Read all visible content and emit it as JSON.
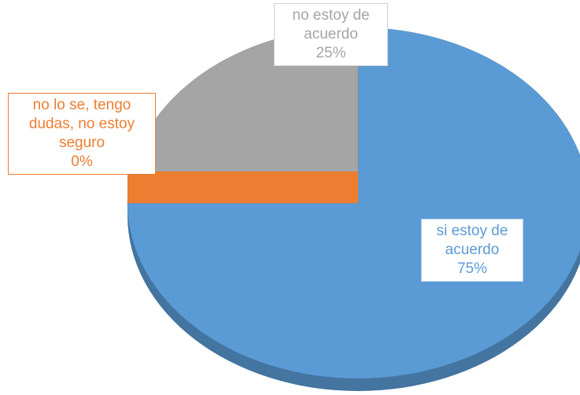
{
  "chart_data": {
    "type": "pie",
    "categories": [
      "si estoy de acuerdo",
      "no lo se, tengo dudas, no estoy seguro",
      "no estoy de acuerdo"
    ],
    "values": [
      75,
      0,
      25
    ],
    "value_labels": [
      "75%",
      "0%",
      "25%"
    ],
    "colors": [
      "#5b9bd5",
      "#ed7d31",
      "#a5a5a5"
    ]
  }
}
